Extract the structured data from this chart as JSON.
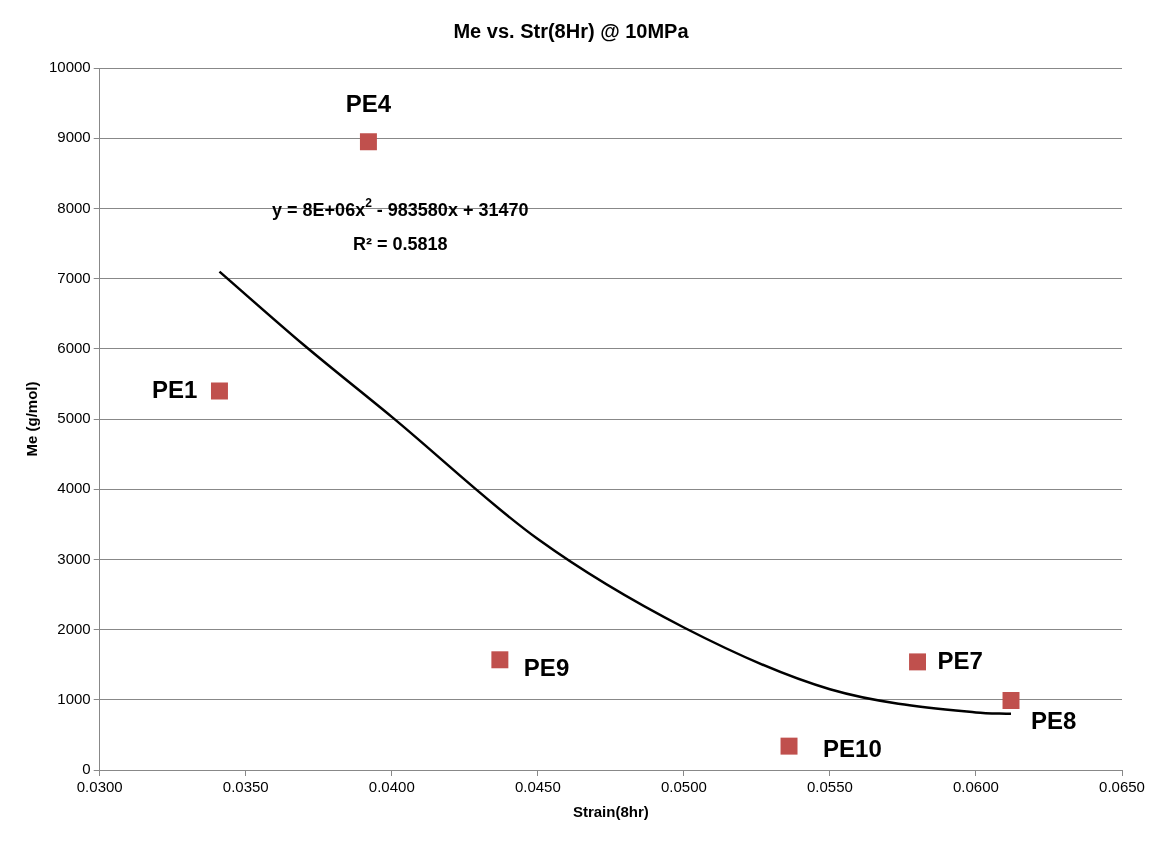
{
  "chart_data": {
    "type": "scatter",
    "title": "Me vs. Str(8Hr) @ 10MPa",
    "xlabel": "Strain(8hr)",
    "ylabel": "Me (g/mol)",
    "series": [
      {
        "marker": "square",
        "color": "#c0504d",
        "x": [
          0.0341,
          0.0392,
          0.0437,
          0.0536,
          0.058,
          0.0612
        ],
        "values": [
          5400,
          8950,
          1570,
          340,
          1540,
          990
        ]
      },
      {
        "type": "line",
        "marker": "none",
        "color": "#000000",
        "x": [
          0.0341,
          0.037,
          0.04,
          0.045,
          0.05,
          0.055,
          0.06,
          0.0612
        ],
        "values": [
          7100,
          6050,
          5030,
          3290,
          2030,
          1150,
          820,
          800
        ]
      }
    ],
    "annotations": [
      {
        "text": "PE1",
        "x": 0.0341,
        "y": 5400
      },
      {
        "text": "PE4",
        "x": 0.0392,
        "y": 8950
      },
      {
        "text": "PE9",
        "x": 0.0437,
        "y": 1570
      },
      {
        "text": "PE10",
        "x": 0.0536,
        "y": 340
      },
      {
        "text": "PE7",
        "x": 0.058,
        "y": 1540
      },
      {
        "text": "PE8",
        "x": 0.0612,
        "y": 990
      },
      "y = 8E+06x$^{2}$ - 983580x + 31470",
      "R² = 0.5818"
    ],
    "xlim": [
      0.03,
      0.065
    ],
    "xticks": [
      {
        "value": 0.03,
        "label": "0.0300"
      },
      {
        "value": 0.035,
        "label": "0.0350"
      },
      {
        "value": 0.04,
        "label": "0.0400"
      },
      {
        "value": 0.045,
        "label": "0.0450"
      },
      {
        "value": 0.05,
        "label": "0.0500"
      },
      {
        "value": 0.055,
        "label": "0.0550"
      },
      {
        "value": 0.06,
        "label": "0.0600"
      },
      {
        "value": 0.065,
        "label": "0.0650"
      }
    ],
    "ylim": [
      0,
      10000
    ],
    "yticks": [
      0,
      1000,
      2000,
      3000,
      4000,
      5000,
      6000,
      7000,
      8000,
      9000,
      10000
    ],
    "grid": "y",
    "legend": false,
    "line_style": "solid"
  }
}
